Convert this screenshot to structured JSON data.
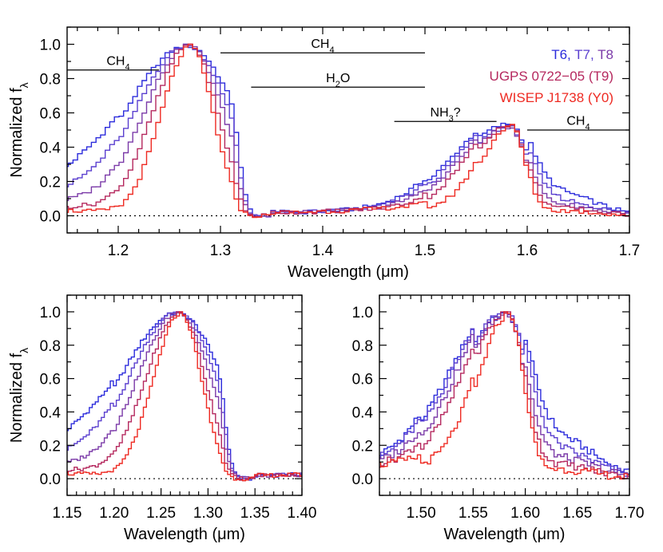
{
  "chart_data": [
    {
      "id": "top",
      "type": "line",
      "xlabel": "Wavelength (μm)",
      "ylabel": "Normalized f",
      "ylabel_sub": "λ",
      "xlim": [
        1.15,
        1.7
      ],
      "ylim": [
        -0.1,
        1.1
      ],
      "xticks": [
        1.2,
        1.3,
        1.4,
        1.5,
        1.6,
        1.7
      ],
      "xtick_labels": [
        "1.2",
        "1.3",
        "1.4",
        "1.5",
        "1.6",
        "1.7"
      ],
      "yticks": [
        0.0,
        0.2,
        0.4,
        0.6,
        0.8,
        1.0
      ],
      "ytick_labels": [
        "0.0",
        "0.2",
        "0.4",
        "0.6",
        "0.8",
        "1.0"
      ],
      "legend": [
        {
          "parts": [
            {
              "text": "T6,",
              "color": "#2b2bdc"
            },
            {
              "text": " T7,",
              "color": "#5a3fcf"
            },
            {
              "text": " T8",
              "color": "#7b3aa8"
            }
          ]
        },
        {
          "parts": [
            {
              "text": "UGPS 0722−05 (T9)",
              "color": "#b5285e"
            }
          ]
        },
        {
          "parts": [
            {
              "text": "WISEP J1738 (Y0)",
              "color": "#ee2a22"
            }
          ]
        }
      ],
      "annotations": [
        {
          "name": "ch4-left",
          "label": "CH",
          "sub": "4",
          "x1": 1.15,
          "x2": 1.24,
          "y": 0.85,
          "label_x": 1.2,
          "label_y": 0.88
        },
        {
          "name": "ch4-middle",
          "label": "CH",
          "sub": "4",
          "x1": 1.3,
          "x2": 1.5,
          "y": 0.95,
          "label_x": 1.4,
          "label_y": 0.98
        },
        {
          "name": "h2o",
          "label": "H",
          "sub": "2",
          "suffix": "O",
          "x1": 1.33,
          "x2": 1.5,
          "y": 0.75,
          "label_x": 1.415,
          "label_y": 0.78
        },
        {
          "name": "nh3",
          "label": "NH",
          "sub": "3",
          "suffix": "?",
          "x1": 1.47,
          "x2": 1.57,
          "y": 0.55,
          "label_x": 1.52,
          "label_y": 0.58
        },
        {
          "name": "ch4-right",
          "label": "CH",
          "sub": "4",
          "x1": 1.6,
          "x2": 1.7,
          "y": 0.5,
          "label_x": 1.65,
          "label_y": 0.53
        }
      ]
    },
    {
      "id": "bottom-left",
      "type": "line",
      "xlabel": "Wavelength (μm)",
      "ylabel": "Normalized f",
      "ylabel_sub": "λ",
      "xlim": [
        1.15,
        1.4
      ],
      "ylim": [
        -0.1,
        1.1
      ],
      "xticks": [
        1.15,
        1.2,
        1.25,
        1.3,
        1.35,
        1.4
      ],
      "xtick_labels": [
        "1.15",
        "1.20",
        "1.25",
        "1.30",
        "1.35",
        "1.40"
      ],
      "yticks": [
        0.0,
        0.2,
        0.4,
        0.6,
        0.8,
        1.0
      ],
      "ytick_labels": [
        "0.0",
        "0.2",
        "0.4",
        "0.6",
        "0.8",
        "1.0"
      ]
    },
    {
      "id": "bottom-right",
      "type": "line",
      "xlabel": "Wavelength (μm)",
      "xlim": [
        1.46,
        1.7
      ],
      "ylim": [
        -0.1,
        1.1
      ],
      "xticks": [
        1.5,
        1.55,
        1.6,
        1.65,
        1.7
      ],
      "xtick_labels": [
        "1.50",
        "1.55",
        "1.60",
        "1.65",
        "1.70"
      ],
      "yticks": [
        0.0,
        0.2,
        0.4,
        0.6,
        0.8,
        1.0
      ],
      "ytick_labels": [
        "0.0",
        "0.2",
        "0.4",
        "0.6",
        "0.8",
        "1.0"
      ]
    }
  ],
  "series": [
    {
      "name": "T6",
      "color": "#2b2bdc",
      "j_peak": 1.268,
      "j_left": 0.062,
      "j_right": 0.048,
      "j_shoulder": 0.11,
      "j_floor": 0.13,
      "h_peak": 1.583,
      "h_left": 0.052,
      "h_right": 0.02,
      "h_amp": 0.54,
      "h_tail": 0.27
    },
    {
      "name": "T7",
      "color": "#5a3fcf",
      "j_peak": 1.268,
      "j_left": 0.052,
      "j_right": 0.041,
      "j_shoulder": 0.07,
      "j_floor": 0.1,
      "h_peak": 1.583,
      "h_left": 0.049,
      "h_right": 0.019,
      "h_amp": 0.52,
      "h_tail": 0.18
    },
    {
      "name": "T8",
      "color": "#7b3aa8",
      "j_peak": 1.269,
      "j_left": 0.044,
      "j_right": 0.034,
      "j_shoulder": 0.04,
      "j_floor": 0.07,
      "h_peak": 1.583,
      "h_left": 0.045,
      "h_right": 0.017,
      "h_amp": 0.52,
      "h_tail": 0.13
    },
    {
      "name": "UGPS 0722-05 (T9)",
      "color": "#b5285e",
      "j_peak": 1.27,
      "j_left": 0.036,
      "j_right": 0.027,
      "j_shoulder": 0.02,
      "j_floor": 0.05,
      "h_peak": 1.584,
      "h_left": 0.04,
      "h_right": 0.015,
      "h_amp": 0.53,
      "h_tail": 0.09
    },
    {
      "name": "WISEP J1738 (Y0)",
      "color": "#ee2a22",
      "j_peak": 1.271,
      "j_left": 0.029,
      "j_right": 0.022,
      "j_shoulder": 0.0,
      "j_floor": 0.03,
      "h_peak": 1.585,
      "h_left": 0.03,
      "h_right": 0.013,
      "h_amp": 0.53,
      "h_tail": 0.06
    }
  ]
}
